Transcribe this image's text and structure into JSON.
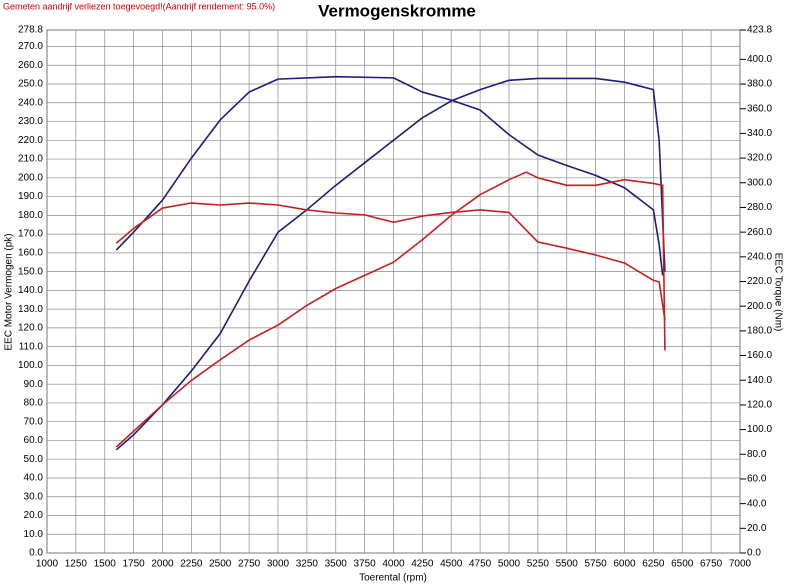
{
  "chart_data": {
    "type": "line",
    "title": "Vermogenskromme",
    "note": "Gemeten aandrijf verliezen toegevoegd!(Aandrijf rendement: 95.0%)",
    "x_label": "Toerental (rpm)",
    "y_label": "EEC Motor Vermogen (pk)",
    "y2_label": "EEC Torque (Nm)",
    "grid": true,
    "xlim": [
      1000,
      7000
    ],
    "xticks": [
      1000,
      1250,
      1500,
      1750,
      2000,
      2250,
      2500,
      2750,
      3000,
      3250,
      3500,
      3750,
      4000,
      4250,
      4500,
      4750,
      5000,
      5250,
      5500,
      5750,
      6000,
      6250,
      6500,
      6750,
      7000
    ],
    "ylim": [
      0,
      278.8
    ],
    "yticks": [
      {
        "value": 0,
        "label": "0.0"
      },
      {
        "value": 10,
        "label": "10.0"
      },
      {
        "value": 20,
        "label": "20.0"
      },
      {
        "value": 30,
        "label": "30.0"
      },
      {
        "value": 40,
        "label": "40.0"
      },
      {
        "value": 50,
        "label": "50.0"
      },
      {
        "value": 60,
        "label": "60.0"
      },
      {
        "value": 70,
        "label": "70.0"
      },
      {
        "value": 80,
        "label": "80.0"
      },
      {
        "value": 90,
        "label": "90.0"
      },
      {
        "value": 100,
        "label": "100.0"
      },
      {
        "value": 110,
        "label": "110.0"
      },
      {
        "value": 120,
        "label": "120.0"
      },
      {
        "value": 130,
        "label": "130.0"
      },
      {
        "value": 140,
        "label": "140.0"
      },
      {
        "value": 150,
        "label": "150.0"
      },
      {
        "value": 160,
        "label": "160.0"
      },
      {
        "value": 170,
        "label": "170.0"
      },
      {
        "value": 180,
        "label": "180.0"
      },
      {
        "value": 190,
        "label": "190.0"
      },
      {
        "value": 200,
        "label": "200.0"
      },
      {
        "value": 210,
        "label": "210.0"
      },
      {
        "value": 220,
        "label": "220.0"
      },
      {
        "value": 230,
        "label": "230.0"
      },
      {
        "value": 240,
        "label": "240.0"
      },
      {
        "value": 250,
        "label": "250.0"
      },
      {
        "value": 260,
        "label": "260.0"
      },
      {
        "value": 270,
        "label": "270.0"
      },
      278.8
    ],
    "y2lim": [
      0,
      423.8
    ],
    "y2ticks": [
      {
        "value": 0,
        "label": "0.0"
      },
      {
        "value": 20,
        "label": "20.0"
      },
      {
        "value": 40,
        "label": "40.0"
      },
      {
        "value": 60,
        "label": "60.0"
      },
      {
        "value": 80,
        "label": "80.0"
      },
      {
        "value": 100,
        "label": "100.0"
      },
      {
        "value": 120,
        "label": "120.0"
      },
      {
        "value": 140,
        "label": "140.0"
      },
      {
        "value": 160,
        "label": "160.0"
      },
      {
        "value": 180,
        "label": "180.0"
      },
      {
        "value": 200,
        "label": "200.0"
      },
      {
        "value": 220,
        "label": "220.0"
      },
      {
        "value": 240,
        "label": "240.0"
      },
      {
        "value": 260,
        "label": "260.0"
      },
      {
        "value": 280,
        "label": "280.0"
      },
      {
        "value": 300,
        "label": "300.0"
      },
      {
        "value": 320,
        "label": "320.0"
      },
      {
        "value": 340,
        "label": "340.0"
      },
      {
        "value": 360,
        "label": "360.0"
      },
      {
        "value": 380,
        "label": "380.0"
      },
      {
        "value": 400,
        "label": "400.0"
      },
      423.8
    ],
    "series": [
      {
        "color": "#1c1c7a",
        "axis": "y",
        "x": [
          1600,
          1750,
          2000,
          2250,
          2500,
          2750,
          3000,
          3250,
          3500,
          3750,
          4000,
          4250,
          4500,
          4750,
          5000,
          5250,
          5500,
          5750,
          6000,
          6250,
          6300,
          6350
        ],
        "values": [
          55,
          63,
          79,
          97,
          117,
          145,
          171,
          183,
          196,
          208,
          220,
          232,
          241,
          247,
          252,
          253,
          253,
          253,
          251,
          247,
          220,
          150
        ]
      },
      {
        "color": "#1c1c7a",
        "axis": "y2",
        "x": [
          1600,
          1750,
          2000,
          2250,
          2500,
          2750,
          3000,
          3500,
          4000,
          4250,
          4500,
          4750,
          5000,
          5250,
          5500,
          5750,
          6000,
          6250,
          6300,
          6330
        ],
        "values": [
          245.5,
          260,
          286,
          320,
          351,
          373.5,
          384,
          386,
          385,
          373.5,
          367,
          359,
          339,
          322.5,
          314,
          306,
          296,
          278,
          250,
          225
        ]
      },
      {
        "color": "#c42020",
        "axis": "y",
        "x": [
          1600,
          2000,
          2250,
          2500,
          2750,
          3000,
          3250,
          3500,
          3750,
          4000,
          4250,
          4500,
          4750,
          5000,
          5150,
          5250,
          5500,
          5750,
          6000,
          6250,
          6330,
          6350
        ],
        "values": [
          56.5,
          79,
          92,
          103,
          113.5,
          121.5,
          132,
          141,
          148,
          155,
          167,
          180,
          191,
          199,
          203,
          200,
          196,
          196,
          199,
          197,
          196,
          108
        ]
      },
      {
        "color": "#c42020",
        "axis": "y2",
        "x": [
          1600,
          1750,
          2000,
          2250,
          2500,
          2750,
          3000,
          3250,
          3500,
          3750,
          4000,
          4250,
          4500,
          4750,
          5000,
          5250,
          5500,
          5750,
          6000,
          6250,
          6300,
          6350
        ],
        "values": [
          251,
          263,
          279.5,
          283.6,
          282,
          283.6,
          282,
          278,
          275.5,
          274,
          268,
          273,
          276,
          278,
          276,
          252,
          247,
          241.5,
          235,
          221,
          219.6,
          189
        ]
      }
    ]
  }
}
